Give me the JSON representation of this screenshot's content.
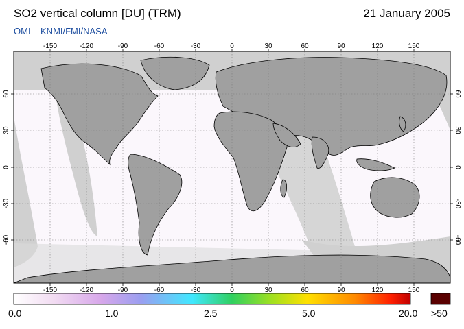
{
  "header": {
    "title": "SO2 vertical column [DU] (TRM)",
    "date": "21 January 2005",
    "credit": "OMI  –  KNMI/FMI/NASA"
  },
  "map": {
    "lon_ticks": [
      "-150",
      "-120",
      "-90",
      "-60",
      "-30",
      "0",
      "30",
      "60",
      "90",
      "120",
      "150"
    ],
    "lat_ticks": [
      "60",
      "30",
      "0",
      "-30",
      "-60"
    ],
    "colors": {
      "no_data": "#d0d0d0",
      "land": "#a0a0a0",
      "ocean_background": "#fbf7fc",
      "coastline": "#000000"
    }
  },
  "colorbar": {
    "labels": [
      "0.0",
      "1.0",
      "2.5",
      "5.0",
      "20.0",
      ">50"
    ],
    "stops": [
      "#ffffff",
      "#f2dcf2",
      "#d7a7ea",
      "#9b9ef0",
      "#40e8ff",
      "#30d060",
      "#a0e020",
      "#ffe000",
      "#ff8a00",
      "#ff2000",
      "#c00000"
    ],
    "overflow_color": "#5a0000"
  }
}
